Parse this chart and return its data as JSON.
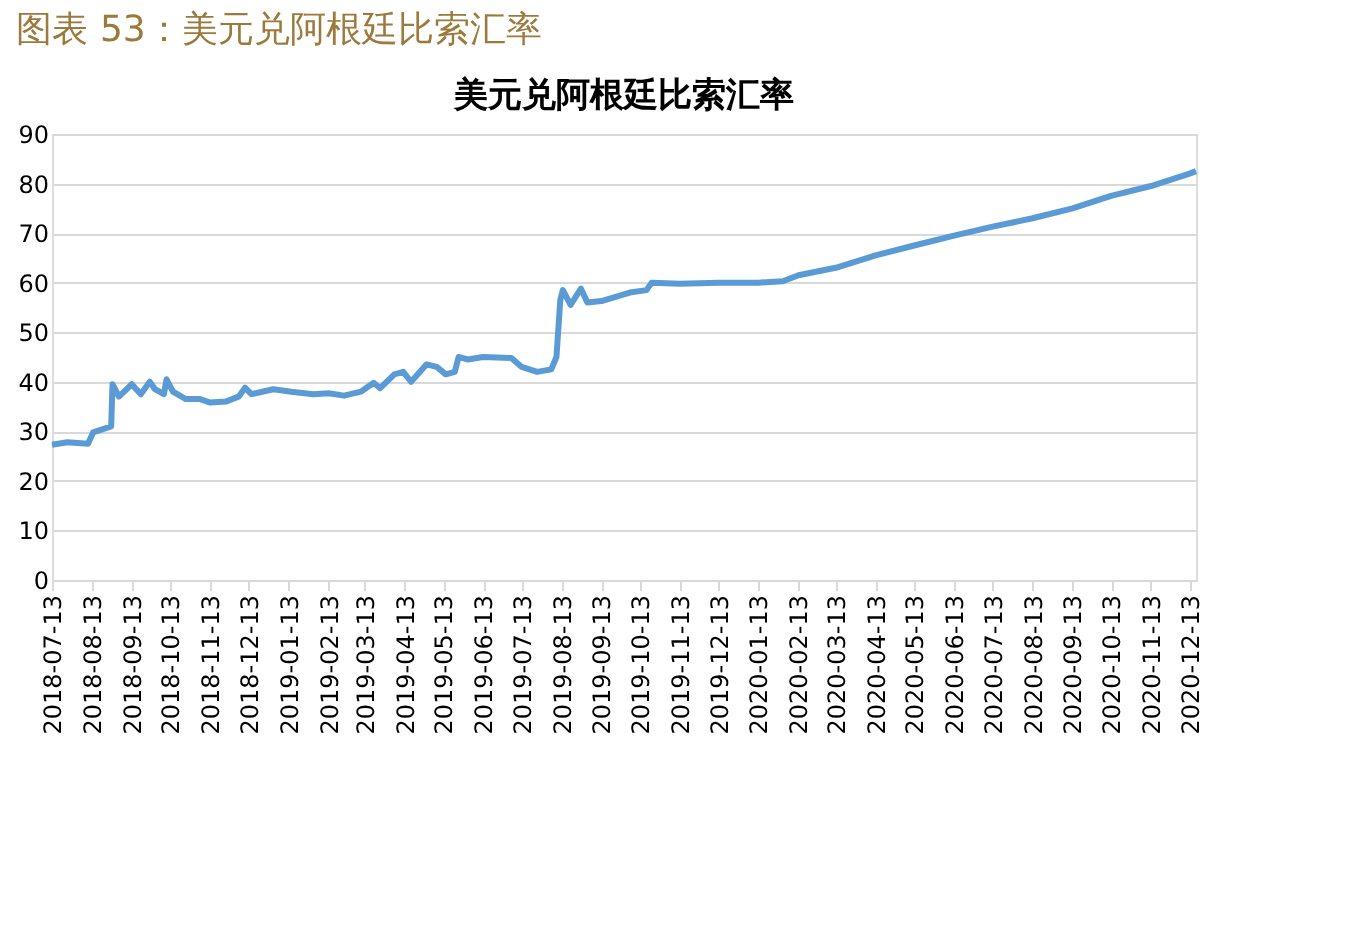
{
  "chart_data": {
    "type": "line",
    "title": "图表 53：美元兑阿根廷比索汇率",
    "subtitle": "美元兑阿根廷比索汇率",
    "x": [
      "2018-07-13",
      "2018-07-25",
      "2018-08-10",
      "2018-08-14",
      "2018-08-28",
      "2018-08-29",
      "2018-09-03",
      "2018-09-13",
      "2018-09-20",
      "2018-09-27",
      "2018-10-01",
      "2018-10-08",
      "2018-10-10",
      "2018-10-15",
      "2018-10-25",
      "2018-11-05",
      "2018-11-13",
      "2018-11-25",
      "2018-12-05",
      "2018-12-10",
      "2018-12-15",
      "2019-01-01",
      "2019-01-15",
      "2019-02-01",
      "2019-02-13",
      "2019-02-25",
      "2019-03-10",
      "2019-03-20",
      "2019-03-25",
      "2019-04-05",
      "2019-04-12",
      "2019-04-18",
      "2019-04-30",
      "2019-05-08",
      "2019-05-15",
      "2019-05-22",
      "2019-05-25",
      "2019-06-01",
      "2019-06-13",
      "2019-07-05",
      "2019-07-13",
      "2019-07-25",
      "2019-08-05",
      "2019-08-09",
      "2019-08-12",
      "2019-08-14",
      "2019-08-20",
      "2019-08-28",
      "2019-09-02",
      "2019-09-13",
      "2019-10-05",
      "2019-10-18",
      "2019-10-22",
      "2019-11-13",
      "2019-12-13",
      "2020-01-13",
      "2020-02-01",
      "2020-02-13",
      "2020-03-13",
      "2020-04-13",
      "2020-05-13",
      "2020-06-13",
      "2020-07-13",
      "2020-08-13",
      "2020-09-13",
      "2020-10-13",
      "2020-11-13",
      "2020-12-13",
      "2020-12-18"
    ],
    "series": [
      {
        "color": "#5b9bd5",
        "values": [
          27.3,
          27.8,
          27.5,
          29.8,
          31,
          39.5,
          37,
          39.5,
          37.5,
          40,
          38.5,
          37.5,
          40.5,
          38,
          36.5,
          36.5,
          35.8,
          36,
          37,
          38.8,
          37.5,
          38.5,
          38,
          37.5,
          37.7,
          37.2,
          38,
          39.8,
          38.7,
          41.5,
          42,
          40,
          43.5,
          43,
          41.5,
          42,
          45,
          44.5,
          45,
          44.8,
          43,
          42,
          42.5,
          45,
          56.5,
          58.5,
          55.5,
          58.8,
          56,
          56.3,
          58,
          58.5,
          60,
          59.8,
          60,
          60,
          60.3,
          61.5,
          63,
          65.5,
          67.5,
          69.5,
          71.3,
          73,
          75,
          77.5,
          79.5,
          82,
          82.5
        ]
      }
    ],
    "xlim": [
      "2018-07-13",
      "2020-12-18"
    ],
    "xticks": [
      "2018-07-13",
      "2018-08-13",
      "2018-09-13",
      "2018-10-13",
      "2018-11-13",
      "2018-12-13",
      "2019-01-13",
      "2019-02-13",
      "2019-03-13",
      "2019-04-13",
      "2019-05-13",
      "2019-06-13",
      "2019-07-13",
      "2019-08-13",
      "2019-09-13",
      "2019-10-13",
      "2019-11-13",
      "2019-12-13",
      "2020-01-13",
      "2020-02-13",
      "2020-03-13",
      "2020-04-13",
      "2020-05-13",
      "2020-06-13",
      "2020-07-13",
      "2020-08-13",
      "2020-09-13",
      "2020-10-13",
      "2020-11-13",
      "2020-12-13"
    ],
    "ylim": [
      0,
      90
    ],
    "yticks": [
      0,
      10,
      20,
      30,
      40,
      50,
      60,
      70,
      80,
      90
    ],
    "grid": "y",
    "legend": false,
    "marker": "none",
    "line_style": "solid"
  }
}
